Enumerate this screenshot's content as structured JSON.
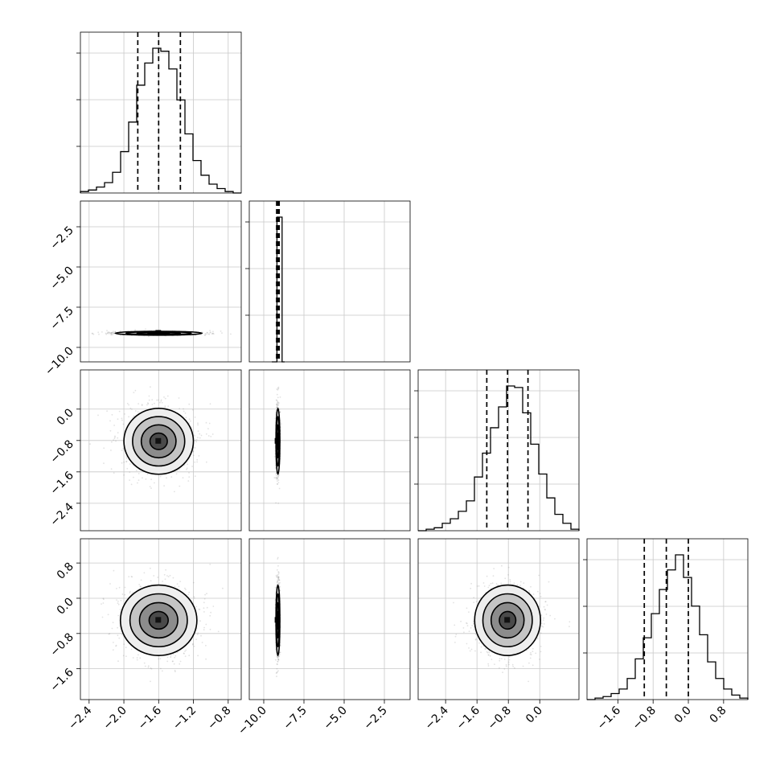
{
  "chart_data": {
    "type": "corner",
    "grid": true,
    "params": [
      {
        "range": [
          -2.5,
          -0.65
        ],
        "ticks": [
          -2.4,
          -2.0,
          -1.6,
          -1.2,
          -0.8
        ],
        "tick_labels": [
          "−2.4",
          "−2.0",
          "−1.6",
          "−1.2",
          "−0.8"
        ],
        "quantiles": [
          -1.84,
          -1.6,
          -1.35
        ]
      },
      {
        "range": [
          -10.9,
          -0.9
        ],
        "ticks": [
          -10.0,
          -7.5,
          -5.0,
          -2.5
        ],
        "tick_labels": [
          "−10.0",
          "−7.5",
          "−5.0",
          "−2.5"
        ],
        "quantiles": [
          -9.2,
          -9.12,
          -9.04
        ]
      },
      {
        "range": [
          -3.1,
          1.0
        ],
        "ticks": [
          -2.4,
          -1.6,
          -0.8,
          0.0
        ],
        "tick_labels": [
          "−2.4",
          "−1.6",
          "−0.8",
          "0.0"
        ],
        "quantiles": [
          -1.35,
          -0.82,
          -0.3
        ]
      },
      {
        "range": [
          -2.3,
          1.35
        ],
        "ticks": [
          -1.6,
          -0.8,
          0.0,
          0.8
        ],
        "tick_labels": [
          "−1.6",
          "−0.8",
          "0.0",
          "0.8"
        ],
        "quantiles": [
          -1.0,
          -0.5,
          0.0
        ]
      }
    ],
    "histograms": [
      {
        "param": 0,
        "edges_start": -2.5,
        "bin_width": 0.0925,
        "counts": [
          1,
          2,
          4,
          7,
          14,
          28,
          48,
          73,
          88,
          98,
          96,
          84,
          63,
          40,
          22,
          12,
          6,
          3,
          1,
          0
        ]
      },
      {
        "param": 1,
        "edges_start": -9.5,
        "bin_width": 0.16,
        "counts": [
          0,
          0,
          97,
          97,
          0
        ]
      },
      {
        "param": 2,
        "edges_start": -3.1,
        "bin_width": 0.205,
        "counts": [
          0,
          1,
          2,
          5,
          8,
          13,
          20,
          36,
          52,
          69,
          83,
          97,
          96,
          79,
          58,
          38,
          22,
          11,
          5,
          1
        ]
      },
      {
        "param": 3,
        "edges_start": -2.3,
        "bin_width": 0.1825,
        "counts": [
          0,
          1,
          2,
          4,
          7,
          14,
          27,
          41,
          57,
          73,
          86,
          96,
          81,
          62,
          43,
          25,
          14,
          7,
          3,
          1
        ]
      }
    ],
    "pairs": [
      {
        "x": 0,
        "y": 1,
        "mean": [
          -1.6,
          -9.12
        ],
        "sd": [
          0.25,
          0.06
        ]
      },
      {
        "x": 0,
        "y": 2,
        "mean": [
          -1.6,
          -0.82
        ],
        "sd": [
          0.2,
          0.42
        ]
      },
      {
        "x": 1,
        "y": 2,
        "mean": [
          -9.12,
          -0.82
        ],
        "sd": [
          0.06,
          0.42
        ]
      },
      {
        "x": 0,
        "y": 3,
        "mean": [
          -1.6,
          -0.5
        ],
        "sd": [
          0.22,
          0.4
        ]
      },
      {
        "x": 1,
        "y": 3,
        "mean": [
          -9.12,
          -0.5
        ],
        "sd": [
          0.06,
          0.4
        ]
      },
      {
        "x": 2,
        "y": 3,
        "mean": [
          -0.82,
          -0.5
        ],
        "sd": [
          0.42,
          0.4
        ]
      }
    ]
  }
}
